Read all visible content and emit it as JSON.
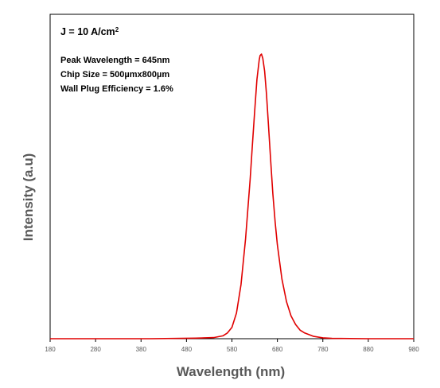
{
  "chart_data": {
    "type": "line",
    "title": "",
    "xlabel": "Wavelength (nm)",
    "ylabel": "Intensity (a.u)",
    "xlim": [
      180,
      980
    ],
    "ylim": [
      0,
      1.0
    ],
    "x_ticks": [
      180,
      280,
      380,
      480,
      580,
      680,
      780,
      880,
      980
    ],
    "y_ticks": [],
    "grid": false,
    "legend": "none",
    "annotations": {
      "current_density_prefix": "J = 10 A/cm",
      "current_density_exponent": "2",
      "lines": [
        "Peak Wavelength = 645nm",
        "Chip Size = 500µmx800µm",
        "Wall Plug Efficiency = 1.6%"
      ]
    },
    "series": [
      {
        "color": "#e00000",
        "x": [
          180,
          300,
          400,
          500,
          540,
          560,
          570,
          580,
          590,
          600,
          610,
          620,
          625,
          630,
          635,
          640,
          642,
          645,
          648,
          652,
          656,
          660,
          665,
          670,
          675,
          680,
          690,
          700,
          710,
          720,
          730,
          740,
          760,
          780,
          800,
          880,
          980
        ],
        "y": [
          0.0,
          0.0,
          0.0,
          0.002,
          0.004,
          0.01,
          0.02,
          0.04,
          0.09,
          0.19,
          0.35,
          0.56,
          0.68,
          0.8,
          0.91,
          0.98,
          0.995,
          1.0,
          0.985,
          0.94,
          0.86,
          0.76,
          0.63,
          0.51,
          0.41,
          0.33,
          0.21,
          0.13,
          0.08,
          0.05,
          0.03,
          0.02,
          0.008,
          0.003,
          0.001,
          0.0,
          0.0
        ]
      }
    ]
  }
}
